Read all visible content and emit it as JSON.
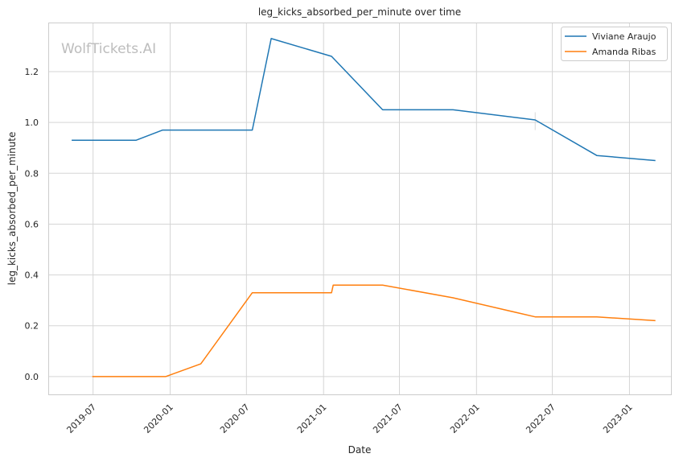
{
  "watermark": "WolfTickets.AI",
  "chart_data": {
    "type": "line",
    "title": "leg_kicks_absorbed_per_minute over time",
    "xlabel": "Date",
    "ylabel": "leg_kicks_absorbed_per_minute",
    "xlim": [
      "2019-03-18",
      "2023-04-10"
    ],
    "ylim": [
      -0.07,
      1.39
    ],
    "x_ticks": [
      "2019-07",
      "2020-01",
      "2020-07",
      "2021-01",
      "2021-07",
      "2022-01",
      "2022-07",
      "2023-01"
    ],
    "y_ticks": [
      "0.0",
      "0.2",
      "0.4",
      "0.6",
      "0.8",
      "1.0",
      "1.2"
    ],
    "grid": true,
    "legend_position": "top-right",
    "colors": {
      "Viviane Araujo": "#1f77b4",
      "Amanda Ribas": "#ff7f0e",
      "grid": "#d5d5d5",
      "frame": "#cccccc",
      "watermark": "#bdbdbd"
    },
    "series": [
      {
        "name": "Viviane Araujo",
        "color": "#1f77b4",
        "points": [
          {
            "x": "2019-05-11",
            "y": 0.93
          },
          {
            "x": "2019-10-12",
            "y": 0.93
          },
          {
            "x": "2019-12-14",
            "y": 0.97
          },
          {
            "x": "2020-07-15",
            "y": 0.97
          },
          {
            "x": "2020-08-29",
            "y": 1.33
          },
          {
            "x": "2021-01-20",
            "y": 1.26
          },
          {
            "x": "2021-05-22",
            "y": 1.05
          },
          {
            "x": "2021-11-06",
            "y": 1.05
          },
          {
            "x": "2022-05-21",
            "y": 1.01
          },
          {
            "x": "2022-10-15",
            "y": 0.87
          },
          {
            "x": "2023-03-04",
            "y": 0.85
          }
        ]
      },
      {
        "name": "Amanda Ribas",
        "color": "#ff7f0e",
        "points": [
          {
            "x": "2019-06-29",
            "y": 0.0
          },
          {
            "x": "2019-12-21",
            "y": 0.0
          },
          {
            "x": "2020-03-14",
            "y": 0.05
          },
          {
            "x": "2020-07-15",
            "y": 0.33
          },
          {
            "x": "2021-01-20",
            "y": 0.33
          },
          {
            "x": "2021-01-24",
            "y": 0.36
          },
          {
            "x": "2021-05-22",
            "y": 0.36
          },
          {
            "x": "2021-11-06",
            "y": 0.31
          },
          {
            "x": "2022-05-21",
            "y": 0.235
          },
          {
            "x": "2022-10-15",
            "y": 0.235
          },
          {
            "x": "2023-03-04",
            "y": 0.22
          }
        ]
      }
    ],
    "annotations": [
      {
        "type": "vertical-marker",
        "x": "2022-05-21",
        "y_range": [
          0.97,
          1.04
        ]
      }
    ]
  }
}
